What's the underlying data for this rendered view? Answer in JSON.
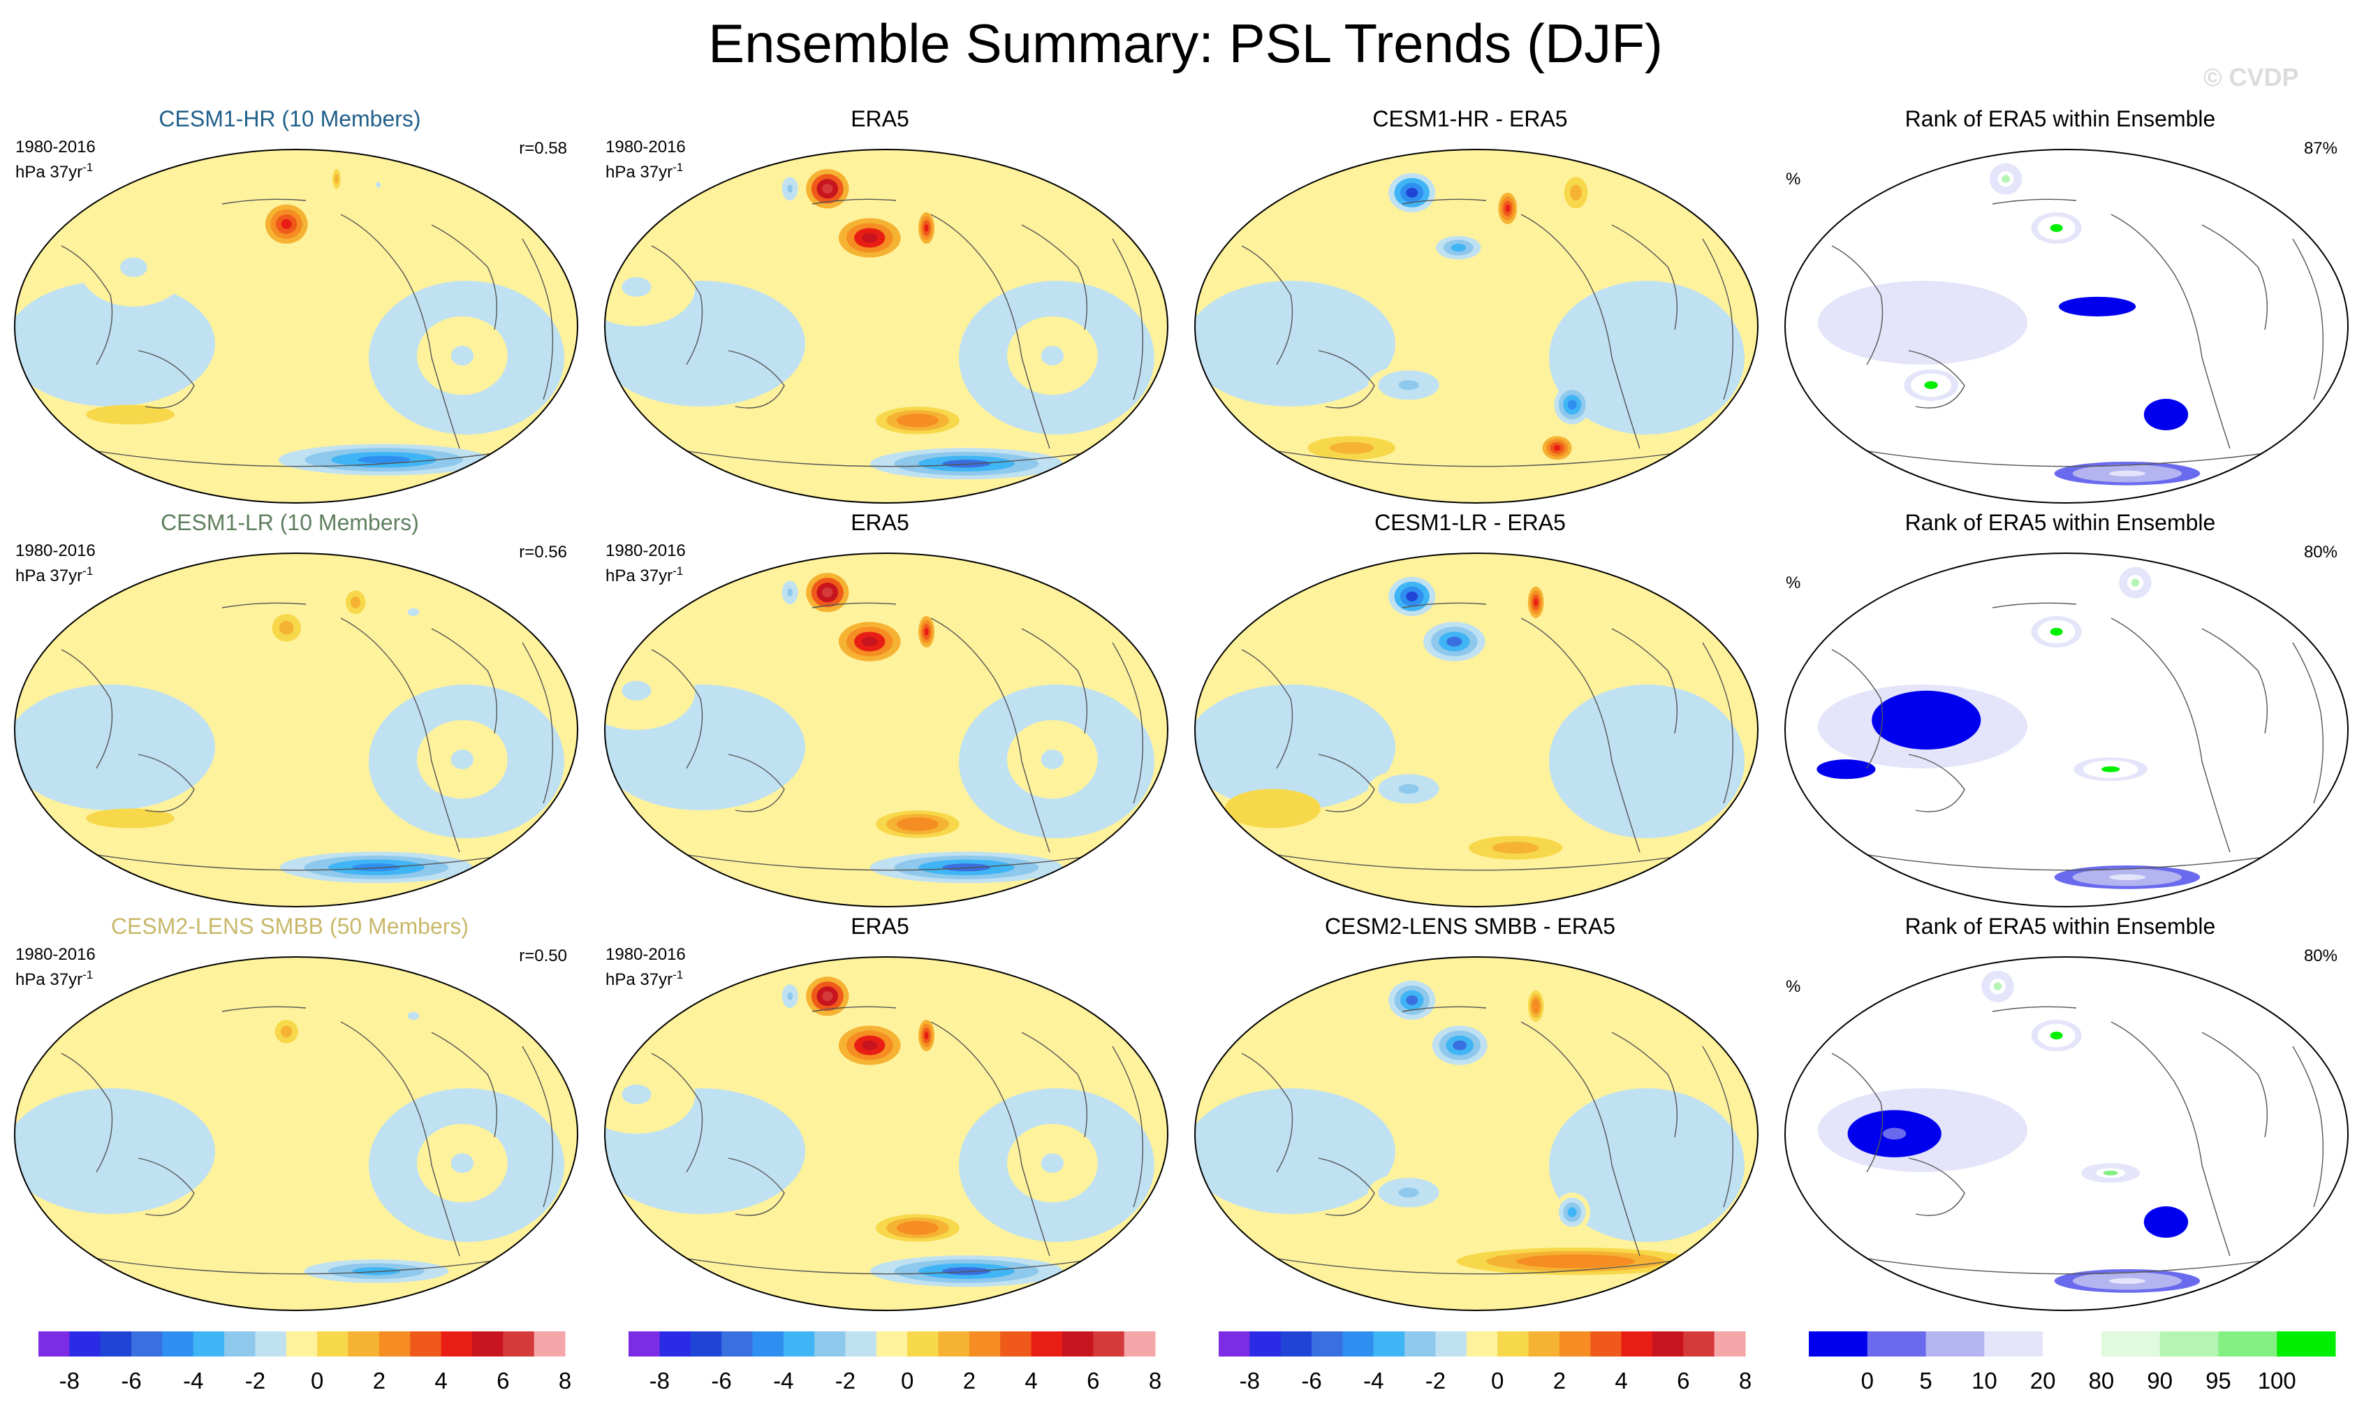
{
  "figure": {
    "title": "Ensemble Summary: PSL Trends (DJF)",
    "watermark": "© CVDP"
  },
  "colors": {
    "trend_scale": [
      "#7d2ce6",
      "#2b2be6",
      "#1f44d6",
      "#3a6fe0",
      "#2f8ff0",
      "#3fb5f5",
      "#8ec8ec",
      "#bfe1f2",
      "#fff29c",
      "#f7d84a",
      "#f5b233",
      "#f58d22",
      "#ef5a1a",
      "#e81e14",
      "#c8141e",
      "#d43a3a",
      "#f5a6a8"
    ],
    "rank_scale": [
      "#0000ee",
      "#6a6aee",
      "#b4b4f0",
      "#e4e4fa",
      "#ffffff",
      "#e0fae0",
      "#b4f5b4",
      "#84f084",
      "#00ee00"
    ],
    "coast": "#555555",
    "outline": "#000000"
  },
  "chart_data": [
    {
      "type": "contour-map",
      "row": 1,
      "col": 1,
      "kind": "model",
      "title": "CESM1-HR (10 Members)",
      "title_color": "#1f5f8a",
      "period": "1980-2016",
      "units": "hPa 37yr",
      "units_sup": "-1",
      "stat": "r=0.58",
      "field": [
        {
          "lon": -160,
          "lat": 52,
          "rx": 22,
          "ry": 10,
          "value": 5
        },
        {
          "lon": -50,
          "lat": 75,
          "rx": 10,
          "ry": 5,
          "value": 2
        },
        {
          "lon": 20,
          "lat": 72,
          "rx": 20,
          "ry": 6,
          "value": -1
        },
        {
          "lon": 90,
          "lat": 30,
          "rx": 40,
          "ry": 20,
          "value": -1
        },
        {
          "lon": -40,
          "lat": -15,
          "rx": 30,
          "ry": 20,
          "value": -1
        },
        {
          "lon": 0,
          "lat": -68,
          "rx": 180,
          "ry": 8,
          "value": -4
        },
        {
          "lon": 60,
          "lat": -45,
          "rx": 40,
          "ry": 5,
          "value": 1
        }
      ]
    },
    {
      "type": "contour-map",
      "row": 1,
      "col": 2,
      "kind": "observed",
      "title": "ERA5",
      "title_color": "#000000",
      "period": "1980-2016",
      "units": "hPa 37yr",
      "units_sup": "-1",
      "stat": "",
      "field": [
        {
          "lon": 100,
          "lat": 70,
          "rx": 40,
          "ry": 10,
          "value": 7
        },
        {
          "lon": -165,
          "lat": 45,
          "rx": 28,
          "ry": 10,
          "value": 6
        },
        {
          "lon": -110,
          "lat": 50,
          "rx": 8,
          "ry": 8,
          "value": 5
        },
        {
          "lon": 30,
          "lat": 70,
          "rx": 20,
          "ry": 8,
          "value": -2
        },
        {
          "lon": 40,
          "lat": 20,
          "rx": 40,
          "ry": 20,
          "value": -1
        },
        {
          "lon": -40,
          "lat": -15,
          "rx": 30,
          "ry": 20,
          "value": -1
        },
        {
          "lon": -120,
          "lat": -48,
          "rx": 40,
          "ry": 7,
          "value": 3
        },
        {
          "lon": 0,
          "lat": -70,
          "rx": 180,
          "ry": 8,
          "value": -5
        }
      ]
    },
    {
      "type": "contour-map",
      "row": 1,
      "col": 3,
      "kind": "difference",
      "title": "CESM1-HR - ERA5",
      "title_color": "#000000",
      "stat": "",
      "field": [
        {
          "lon": 100,
          "lat": 68,
          "rx": 40,
          "ry": 10,
          "value": -6
        },
        {
          "lon": -110,
          "lat": 60,
          "rx": 12,
          "ry": 8,
          "value": 5
        },
        {
          "lon": -165,
          "lat": 40,
          "rx": 25,
          "ry": 8,
          "value": -3
        },
        {
          "lon": 20,
          "lat": 68,
          "rx": 20,
          "ry": 8,
          "value": 2
        },
        {
          "lon": 160,
          "lat": -30,
          "rx": 30,
          "ry": 10,
          "value": -2
        },
        {
          "lon": -70,
          "lat": -40,
          "rx": 15,
          "ry": 10,
          "value": -4
        },
        {
          "lon": -40,
          "lat": -62,
          "rx": 20,
          "ry": 6,
          "value": 5
        },
        {
          "lon": 40,
          "lat": -62,
          "rx": 60,
          "ry": 6,
          "value": 2
        }
      ]
    },
    {
      "type": "rank-map",
      "row": 1,
      "col": 4,
      "kind": "rank",
      "title": "Rank of ERA5 within Ensemble",
      "title_color": "#000000",
      "units_label": "%",
      "stat": "87%",
      "field": [
        {
          "lon": -160,
          "lat": 50,
          "rx": 25,
          "ry": 8,
          "value": 100
        },
        {
          "lon": -130,
          "lat": 10,
          "rx": 25,
          "ry": 5,
          "value": 0
        },
        {
          "lon": 110,
          "lat": -30,
          "rx": 20,
          "ry": 8,
          "value": 100
        },
        {
          "lon": -60,
          "lat": -45,
          "rx": 20,
          "ry": 8,
          "value": 0
        },
        {
          "lon": 60,
          "lat": 75,
          "rx": 40,
          "ry": 8,
          "value": 90
        },
        {
          "lon": 0,
          "lat": -75,
          "rx": 180,
          "ry": 6,
          "value": 20
        }
      ]
    },
    {
      "type": "contour-map",
      "row": 2,
      "col": 1,
      "kind": "model",
      "title": "CESM1-LR (10 Members)",
      "title_color": "#5f7f5f",
      "period": "1980-2016",
      "units": "hPa 37yr",
      "units_sup": "-1",
      "stat": "r=0.56",
      "field": [
        {
          "lon": -160,
          "lat": 52,
          "rx": 15,
          "ry": 7,
          "value": 2
        },
        {
          "lon": -60,
          "lat": 65,
          "rx": 15,
          "ry": 6,
          "value": 2
        },
        {
          "lon": 0,
          "lat": 60,
          "rx": 30,
          "ry": 8,
          "value": -1
        },
        {
          "lon": -40,
          "lat": -15,
          "rx": 30,
          "ry": 20,
          "value": -1
        },
        {
          "lon": 0,
          "lat": -70,
          "rx": 180,
          "ry": 8,
          "value": -4
        },
        {
          "lon": 60,
          "lat": -45,
          "rx": 40,
          "ry": 5,
          "value": 1
        }
      ]
    },
    {
      "type": "contour-map",
      "row": 2,
      "col": 2,
      "kind": "observed",
      "title": "ERA5",
      "title_color": "#000000",
      "period": "1980-2016",
      "units": "hPa 37yr",
      "units_sup": "-1",
      "stat": "",
      "field": [
        {
          "lon": 100,
          "lat": 70,
          "rx": 40,
          "ry": 10,
          "value": 7
        },
        {
          "lon": -165,
          "lat": 45,
          "rx": 28,
          "ry": 10,
          "value": 6
        },
        {
          "lon": -110,
          "lat": 50,
          "rx": 8,
          "ry": 8,
          "value": 5
        },
        {
          "lon": 30,
          "lat": 70,
          "rx": 20,
          "ry": 8,
          "value": -2
        },
        {
          "lon": 40,
          "lat": 20,
          "rx": 40,
          "ry": 20,
          "value": -1
        },
        {
          "lon": -40,
          "lat": -15,
          "rx": 30,
          "ry": 20,
          "value": -1
        },
        {
          "lon": -120,
          "lat": -48,
          "rx": 40,
          "ry": 7,
          "value": 3
        },
        {
          "lon": 0,
          "lat": -70,
          "rx": 180,
          "ry": 8,
          "value": -5
        }
      ]
    },
    {
      "type": "contour-map",
      "row": 2,
      "col": 3,
      "kind": "difference",
      "title": "CESM1-LR - ERA5",
      "title_color": "#000000",
      "stat": "",
      "field": [
        {
          "lon": 100,
          "lat": 68,
          "rx": 40,
          "ry": 10,
          "value": -6
        },
        {
          "lon": -170,
          "lat": 45,
          "rx": 28,
          "ry": 10,
          "value": -5
        },
        {
          "lon": -60,
          "lat": 65,
          "rx": 12,
          "ry": 8,
          "value": 5
        },
        {
          "lon": 160,
          "lat": -30,
          "rx": 30,
          "ry": 10,
          "value": -2
        },
        {
          "lon": 40,
          "lat": -40,
          "rx": 40,
          "ry": 10,
          "value": 1
        },
        {
          "lon": -100,
          "lat": -60,
          "rx": 60,
          "ry": 6,
          "value": 2
        }
      ]
    },
    {
      "type": "rank-map",
      "row": 2,
      "col": 4,
      "kind": "rank",
      "title": "Rank of ERA5 within Ensemble",
      "title_color": "#000000",
      "units_label": "%",
      "stat": "80%",
      "field": [
        {
          "lon": -160,
          "lat": 50,
          "rx": 25,
          "ry": 8,
          "value": 100
        },
        {
          "lon": 120,
          "lat": 5,
          "rx": 35,
          "ry": 15,
          "value": 0
        },
        {
          "lon": 60,
          "lat": -20,
          "rx": 20,
          "ry": 5,
          "value": 0
        },
        {
          "lon": -120,
          "lat": -20,
          "rx": 25,
          "ry": 6,
          "value": 100
        },
        {
          "lon": 20,
          "lat": 75,
          "rx": 40,
          "ry": 8,
          "value": 90
        },
        {
          "lon": 0,
          "lat": -75,
          "rx": 180,
          "ry": 6,
          "value": 20
        }
      ]
    },
    {
      "type": "contour-map",
      "row": 3,
      "col": 1,
      "kind": "model",
      "title": "CESM2-LENS SMBB (50 Members)",
      "title_color": "#c8b86a",
      "period": "1980-2016",
      "units": "hPa 37yr",
      "units_sup": "-1",
      "stat": "r=0.50",
      "field": [
        {
          "lon": -160,
          "lat": 52,
          "rx": 12,
          "ry": 6,
          "value": 2
        },
        {
          "lon": 0,
          "lat": 60,
          "rx": 30,
          "ry": 8,
          "value": -1
        },
        {
          "lon": -40,
          "lat": -15,
          "rx": 30,
          "ry": 20,
          "value": -1
        },
        {
          "lon": 0,
          "lat": -70,
          "rx": 180,
          "ry": 8,
          "value": -3
        }
      ]
    },
    {
      "type": "contour-map",
      "row": 3,
      "col": 2,
      "kind": "observed",
      "title": "ERA5",
      "title_color": "#000000",
      "period": "1980-2016",
      "units": "hPa 37yr",
      "units_sup": "-1",
      "stat": "",
      "field": [
        {
          "lon": 100,
          "lat": 70,
          "rx": 40,
          "ry": 10,
          "value": 7
        },
        {
          "lon": -165,
          "lat": 45,
          "rx": 28,
          "ry": 10,
          "value": 6
        },
        {
          "lon": -110,
          "lat": 50,
          "rx": 8,
          "ry": 8,
          "value": 5
        },
        {
          "lon": 30,
          "lat": 70,
          "rx": 20,
          "ry": 8,
          "value": -2
        },
        {
          "lon": 40,
          "lat": 20,
          "rx": 40,
          "ry": 20,
          "value": -1
        },
        {
          "lon": -40,
          "lat": -15,
          "rx": 30,
          "ry": 20,
          "value": -1
        },
        {
          "lon": -120,
          "lat": -48,
          "rx": 40,
          "ry": 7,
          "value": 3
        },
        {
          "lon": 0,
          "lat": -70,
          "rx": 180,
          "ry": 8,
          "value": -5
        }
      ]
    },
    {
      "type": "contour-map",
      "row": 3,
      "col": 3,
      "kind": "difference",
      "title": "CESM2-LENS SMBB - ERA5",
      "title_color": "#000000",
      "stat": "",
      "field": [
        {
          "lon": 100,
          "lat": 68,
          "rx": 40,
          "ry": 10,
          "value": -5
        },
        {
          "lon": -165,
          "lat": 45,
          "rx": 25,
          "ry": 10,
          "value": -5
        },
        {
          "lon": -60,
          "lat": 65,
          "rx": 12,
          "ry": 8,
          "value": 3
        },
        {
          "lon": 160,
          "lat": -30,
          "rx": 30,
          "ry": 10,
          "value": -2
        },
        {
          "lon": -70,
          "lat": -40,
          "rx": 15,
          "ry": 10,
          "value": -3
        },
        {
          "lon": 0,
          "lat": -65,
          "rx": 180,
          "ry": 7,
          "value": 3
        }
      ]
    },
    {
      "type": "rank-map",
      "row": 3,
      "col": 4,
      "kind": "rank",
      "title": "Rank of ERA5 within Ensemble",
      "title_color": "#000000",
      "units_label": "%",
      "stat": "80%",
      "field": [
        {
          "lon": -160,
          "lat": 50,
          "rx": 25,
          "ry": 8,
          "value": 100
        },
        {
          "lon": 100,
          "lat": 0,
          "rx": 30,
          "ry": 12,
          "value": 5
        },
        {
          "lon": -60,
          "lat": -45,
          "rx": 20,
          "ry": 8,
          "value": 0
        },
        {
          "lon": -120,
          "lat": -20,
          "rx": 20,
          "ry": 5,
          "value": 95
        },
        {
          "lon": 40,
          "lat": 75,
          "rx": 40,
          "ry": 8,
          "value": 90
        },
        {
          "lon": 0,
          "lat": -75,
          "rx": 180,
          "ry": 6,
          "value": 20
        }
      ]
    }
  ],
  "legends": [
    {
      "scale": "trend",
      "ticks": [
        "-8",
        "-6",
        "-4",
        "-2",
        "0",
        "2",
        "4",
        "6",
        "8"
      ]
    },
    {
      "scale": "trend",
      "ticks": [
        "-8",
        "-6",
        "-4",
        "-2",
        "0",
        "2",
        "4",
        "6",
        "8"
      ]
    },
    {
      "scale": "trend",
      "ticks": [
        "-8",
        "-6",
        "-4",
        "-2",
        "0",
        "2",
        "4",
        "6",
        "8"
      ]
    },
    {
      "scale": "rank",
      "ticks": [
        "0",
        "5",
        "10",
        "20",
        "80",
        "90",
        "95",
        "100"
      ]
    }
  ]
}
